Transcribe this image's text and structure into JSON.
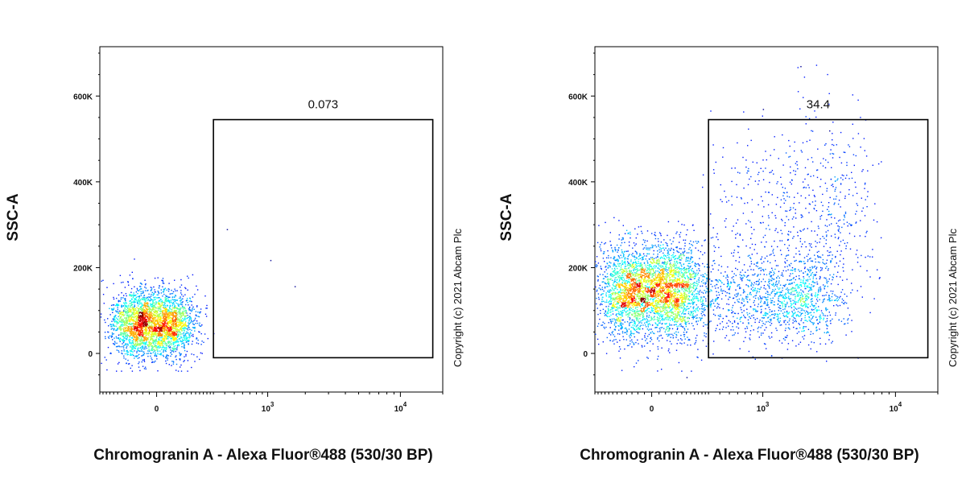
{
  "chart_data": [
    {
      "type": "scatter",
      "title": "",
      "xlabel": "Chromogranin A - Alexa Fluor®488 (530/30 BP)",
      "ylabel": "SSC-A",
      "x_scale": "biexponential",
      "x_ticks": [
        {
          "label": "0",
          "value": 0
        },
        {
          "label": "10",
          "sup": "3",
          "value": 1000
        },
        {
          "label": "10",
          "sup": "4",
          "value": 10000
        }
      ],
      "y_ticks": [
        {
          "label": "0",
          "value": 0
        },
        {
          "label": "200K",
          "value": 200000
        },
        {
          "label": "400K",
          "value": 400000
        },
        {
          "label": "600K",
          "value": 600000
        }
      ],
      "xlim": [
        -300,
        20000
      ],
      "ylim": [
        -90000,
        715000
      ],
      "gate": {
        "x": [
          300,
          17000
        ],
        "y": [
          -10000,
          545000
        ],
        "label": "0.073"
      },
      "populations": [
        {
          "x_center": -20,
          "x_spread": 90,
          "y_center": 70000,
          "y_spread": 40000,
          "share": 0.9993
        }
      ],
      "outliers": [
        [
          420,
          290000
        ],
        [
          1050,
          218000
        ],
        [
          1650,
          157000
        ]
      ],
      "copyright": "Copyright (c) 2021 Abcam Plc"
    },
    {
      "type": "scatter",
      "title": "",
      "xlabel": "Chromogranin A - Alexa Fluor®488 (530/30 BP)",
      "ylabel": "SSC-A",
      "x_scale": "biexponential",
      "x_ticks": [
        {
          "label": "0",
          "value": 0
        },
        {
          "label": "10",
          "sup": "3",
          "value": 1000
        },
        {
          "label": "10",
          "sup": "4",
          "value": 10000
        }
      ],
      "y_ticks": [
        {
          "label": "0",
          "value": 0
        },
        {
          "label": "200K",
          "value": 200000
        },
        {
          "label": "400K",
          "value": 400000
        },
        {
          "label": "600K",
          "value": 600000
        }
      ],
      "xlim": [
        -300,
        20000
      ],
      "ylim": [
        -90000,
        715000
      ],
      "gate": {
        "x": [
          300,
          17000
        ],
        "y": [
          -10000,
          545000
        ],
        "label": "34.4"
      },
      "populations": [
        {
          "x_center": 0,
          "x_spread": 120,
          "y_center": 145000,
          "y_spread": 55000,
          "share": 0.656
        },
        {
          "x_center": 900,
          "x_spread": 1400,
          "y_center": 130000,
          "y_spread": 50000,
          "share": 0.23
        },
        {
          "x_center": 1500,
          "x_spread": 2500,
          "y_center": 330000,
          "y_spread": 110000,
          "share": 0.114
        }
      ],
      "outliers": [
        [
          2000,
          670000
        ],
        [
          1000,
          570000
        ],
        [
          3300,
          520000
        ],
        [
          150,
          -55000
        ]
      ],
      "copyright": "Copyright (c) 2021 Abcam Plc"
    }
  ]
}
